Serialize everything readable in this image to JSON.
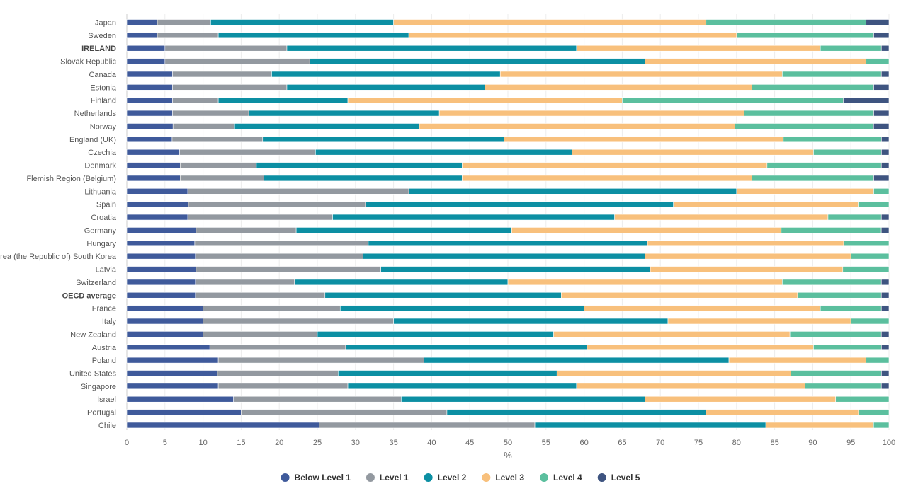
{
  "chart_data": {
    "type": "bar",
    "orientation": "horizontal",
    "stacked": true,
    "title": "",
    "xlabel": "%",
    "ylabel": "",
    "xlim": [
      0,
      100
    ],
    "xticks": [
      0,
      5,
      10,
      15,
      20,
      25,
      30,
      35,
      40,
      45,
      50,
      55,
      60,
      65,
      70,
      75,
      80,
      85,
      90,
      95,
      100
    ],
    "grid": true,
    "legend_position": "bottom-center",
    "categories": [
      "Japan",
      "Sweden",
      "IRELAND",
      "Slovak Republic",
      "Canada",
      "Estonia",
      "Finland",
      "Netherlands",
      "Norway",
      "England (UK)",
      "Czechia",
      "Denmark",
      "Flemish Region (Belgium)",
      "Lithuania",
      "Spain",
      "Croatia",
      "Germany",
      "Hungary",
      "Korea (the Republic of) South Korea",
      "Latvia",
      "Switzerland",
      "OECD average",
      "France",
      "Italy",
      "New Zealand",
      "Austria",
      "Poland",
      "United States",
      "Singapore",
      "Israel",
      "Portugal",
      "Chile"
    ],
    "bold_categories": [
      "IRELAND",
      "OECD average"
    ],
    "series": [
      {
        "name": "Below Level 1",
        "color": "#3f5a9b",
        "values": [
          4,
          4,
          5,
          5,
          6,
          6,
          6,
          6,
          6,
          6,
          7,
          7,
          7,
          8,
          8,
          8,
          9,
          9,
          9,
          9,
          9,
          9,
          10,
          10,
          10,
          11,
          12,
          12,
          12,
          14,
          15,
          25
        ]
      },
      {
        "name": "Level 1",
        "color": "#9399a0",
        "values": [
          7,
          8,
          16,
          19,
          13,
          15,
          6,
          10,
          8,
          12,
          18,
          10,
          11,
          29,
          23,
          19,
          13,
          23,
          22,
          24,
          13,
          17,
          18,
          25,
          15,
          18,
          27,
          16,
          17,
          22,
          27,
          28
        ]
      },
      {
        "name": "Level 2",
        "color": "#0c8fa3",
        "values": [
          24,
          25,
          38,
          44,
          30,
          26,
          17,
          25,
          24,
          32,
          34,
          27,
          26,
          43,
          40,
          37,
          28,
          37,
          37,
          35,
          28,
          31,
          32,
          36,
          31,
          32,
          40,
          29,
          30,
          32,
          34,
          30
        ]
      },
      {
        "name": "Level 3",
        "color": "#f8c07c",
        "values": [
          41,
          43,
          32,
          29,
          37,
          35,
          36,
          40,
          41,
          37,
          32,
          40,
          38,
          18,
          24,
          28,
          35,
          26,
          27,
          25,
          36,
          31,
          31,
          24,
          31,
          30,
          18,
          31,
          30,
          25,
          20,
          14
        ]
      },
      {
        "name": "Level 4",
        "color": "#5bbf9e",
        "values": [
          21,
          18,
          8,
          3,
          13,
          16,
          29,
          17,
          18,
          13,
          9,
          15,
          16,
          2,
          4,
          7,
          13,
          6,
          5,
          6,
          13,
          11,
          8,
          5,
          12,
          9,
          3,
          12,
          10,
          7,
          4,
          2
        ]
      },
      {
        "name": "Level 5",
        "color": "#3e5480",
        "values": [
          3,
          2,
          1,
          0,
          1,
          2,
          6,
          2,
          2,
          1,
          1,
          1,
          2,
          0,
          0,
          1,
          1,
          0,
          0,
          0,
          1,
          1,
          1,
          0,
          1,
          1,
          0,
          1,
          1,
          0,
          0,
          0
        ]
      }
    ]
  }
}
